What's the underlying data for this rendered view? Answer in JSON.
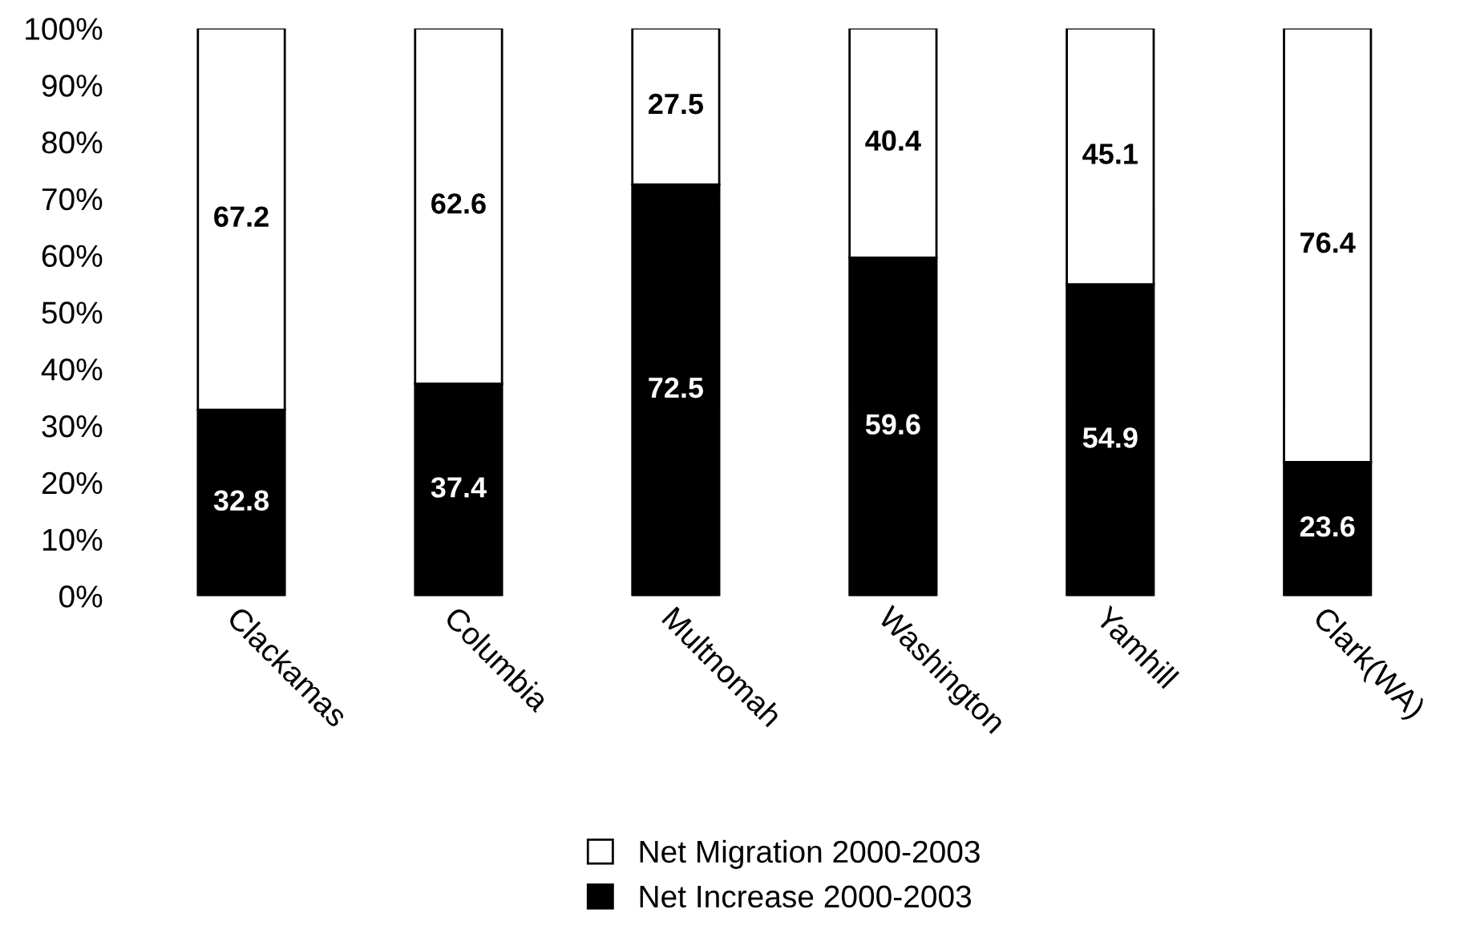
{
  "chart_data": {
    "type": "bar",
    "stacked": true,
    "categories": [
      "Clackamas",
      "Columbia",
      "Multnomah",
      "Washington",
      "Yamhill",
      "Clark(WA)"
    ],
    "series": [
      {
        "name": "Net Increase 2000-2003",
        "color": "#000000",
        "values": [
          32.8,
          37.4,
          72.5,
          59.6,
          54.9,
          23.6
        ]
      },
      {
        "name": "Net Migration 2000-2003",
        "color": "#ffffff",
        "values": [
          67.2,
          62.6,
          27.5,
          40.4,
          45.1,
          76.4
        ]
      }
    ],
    "ylim": [
      0,
      100
    ],
    "yticks": [
      {
        "value": 0,
        "label": "0%"
      },
      {
        "value": 10,
        "label": "10%"
      },
      {
        "value": 20,
        "label": "20%"
      },
      {
        "value": 30,
        "label": "30%"
      },
      {
        "value": 40,
        "label": "40%"
      },
      {
        "value": 50,
        "label": "50%"
      },
      {
        "value": 60,
        "label": "60%"
      },
      {
        "value": 70,
        "label": "70%"
      },
      {
        "value": 80,
        "label": "80%"
      },
      {
        "value": 90,
        "label": "90%"
      },
      {
        "value": 100,
        "label": "100%"
      }
    ],
    "data_labels": true,
    "grid": false,
    "legend": "bottom"
  }
}
